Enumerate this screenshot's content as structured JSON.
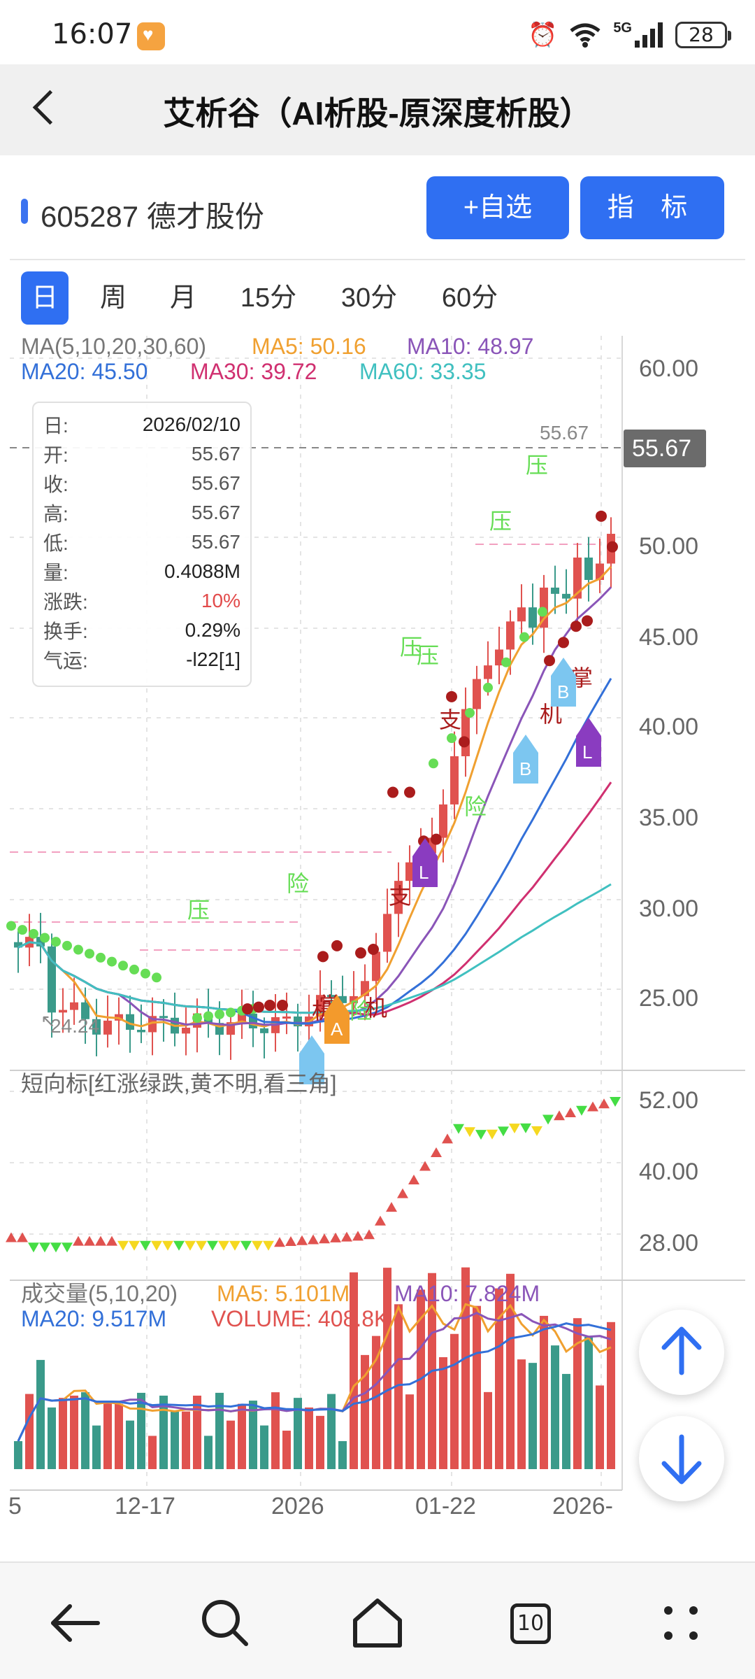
{
  "status_bar": {
    "time": "16:07",
    "network": "5G",
    "battery": "28",
    "icons": [
      "app-notification-icon",
      "alarm-icon",
      "wifi-icon",
      "signal-icon",
      "battery-icon"
    ]
  },
  "header": {
    "title": "艾析谷（AI析股-原深度析股）"
  },
  "stock": {
    "name": "605287 德才股份",
    "add_watch_label": "+自选",
    "indicator_label": "指 标"
  },
  "tabs": [
    {
      "label": "日",
      "active": true
    },
    {
      "label": "周",
      "active": false
    },
    {
      "label": "月",
      "active": false
    },
    {
      "label": "15分",
      "active": false
    },
    {
      "label": "30分",
      "active": false
    },
    {
      "label": "60分",
      "active": false
    }
  ],
  "ma_legend": {
    "label": "MA(5,10,20,30,60)",
    "ma5": "MA5: 50.16",
    "ma10": "MA10: 48.97",
    "ma20": "MA20: 45.50",
    "ma30": "MA30: 39.72",
    "ma60": "MA60: 33.35"
  },
  "info_box": {
    "rows": [
      {
        "k": "日:",
        "v": "2026/02/10",
        "style": "dark"
      },
      {
        "k": "开:",
        "v": "55.67",
        "style": ""
      },
      {
        "k": "收:",
        "v": "55.67",
        "style": ""
      },
      {
        "k": "高:",
        "v": "55.67",
        "style": ""
      },
      {
        "k": "低:",
        "v": "55.67",
        "style": ""
      },
      {
        "k": "量:",
        "v": "0.4088M",
        "style": "dark"
      },
      {
        "k": "涨跌:",
        "v": "10%",
        "style": "red"
      },
      {
        "k": "换手:",
        "v": "0.29%",
        "style": "dark"
      },
      {
        "k": "气运:",
        "v": "-l22[1]",
        "style": "dark"
      }
    ]
  },
  "price_axis": {
    "ticks": [
      "60.00",
      "50.00",
      "45.00",
      "40.00",
      "35.00",
      "30.00",
      "25.00"
    ],
    "current_price": "55.67",
    "high_label": "55.67",
    "low_label": "24.24"
  },
  "signals": {
    "ya": "压",
    "xian": "险",
    "zhi": "支",
    "ji": "机",
    "zhang": "掌",
    "a": "A",
    "b": "B",
    "l": "L"
  },
  "short_indicator": {
    "label": "短向标[红涨绿跌,黄不明,看三角]",
    "ticks": [
      "52.00",
      "40.00",
      "28.00"
    ]
  },
  "volume": {
    "label": "成交量(5,10,20)",
    "ma5": "MA5: 5.101M",
    "ma10": "MA10: 7.824M",
    "ma20": "MA20: 9.517M",
    "volume": "VOLUME: 408.8K"
  },
  "x_axis": {
    "labels": [
      "5",
      "12-17",
      "2026",
      "01-22",
      "2026-"
    ]
  },
  "colors": {
    "up": "#e0524f",
    "down": "#3a9a8a",
    "ma5": "#f0a030",
    "ma10": "#8a55b8",
    "ma20": "#3370d8",
    "ma30": "#d03070",
    "ma60": "#40c0c0",
    "accent": "#2f6ff2"
  },
  "bottom_nav": {
    "tab_count": "10",
    "icons": [
      "back-arrow-icon",
      "search-icon",
      "home-icon",
      "tabs-icon",
      "menu-dots-icon"
    ]
  }
}
